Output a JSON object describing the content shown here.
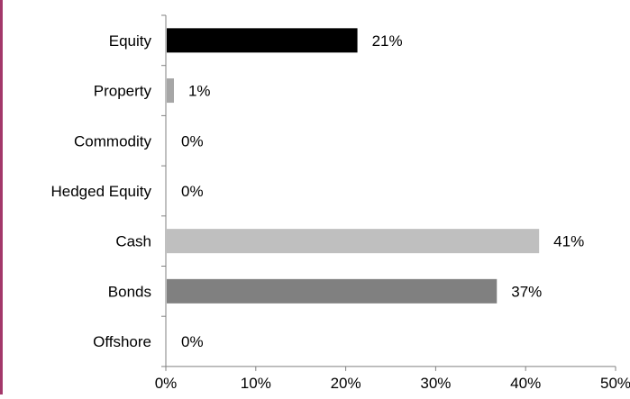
{
  "chart_data": {
    "type": "bar",
    "orientation": "horizontal",
    "categories": [
      "Equity",
      "Property",
      "Commodity",
      "Hedged Equity",
      "Cash",
      "Bonds",
      "Offshore"
    ],
    "values": [
      21.2,
      0.8,
      0,
      0,
      41.4,
      36.7,
      0
    ],
    "data_labels": [
      "21%",
      "1%",
      "0%",
      "0%",
      "41%",
      "37%",
      "0%"
    ],
    "bar_colors": [
      "#000000",
      "#a6a6a6",
      "#a6a6a6",
      "#a6a6a6",
      "#bfbfbf",
      "#808080",
      "#a6a6a6"
    ],
    "xlim": [
      0,
      50
    ],
    "x_ticks": [
      "0%",
      "10%",
      "20%",
      "30%",
      "40%",
      "50%"
    ],
    "title": "",
    "xlabel": "",
    "ylabel": "",
    "grid": false,
    "legend": "none"
  },
  "accent_color": "#a3386a"
}
